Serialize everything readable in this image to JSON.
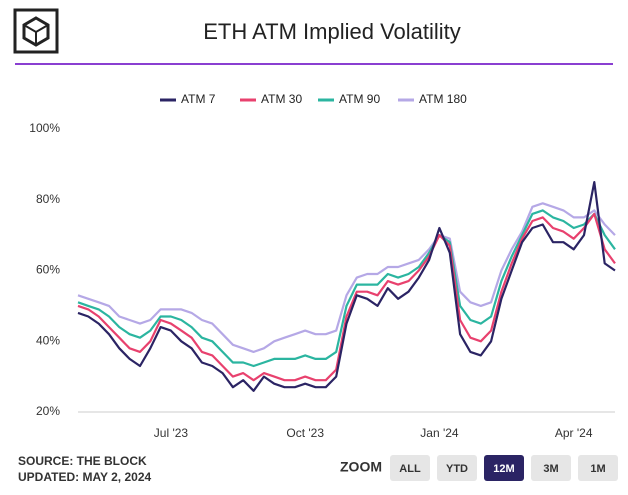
{
  "chart_data": {
    "type": "line",
    "title": "ETH ATM Implied Volatility",
    "categories": [
      null,
      null,
      null,
      null,
      null,
      null,
      null,
      null,
      null,
      "Jul '23",
      null,
      null,
      null,
      null,
      null,
      null,
      null,
      null,
      null,
      null,
      null,
      null,
      "Oct '23",
      null,
      null,
      null,
      null,
      null,
      null,
      null,
      null,
      null,
      null,
      null,
      null,
      "Jan '24",
      null,
      null,
      null,
      null,
      null,
      null,
      null,
      null,
      null,
      null,
      null,
      null,
      "Apr '24",
      null,
      null,
      null,
      null
    ],
    "series": [
      {
        "name": "ATM 7",
        "color": "#2b2464",
        "values": [
          48,
          47,
          45,
          42,
          38,
          35,
          33,
          38,
          44,
          43,
          40,
          38,
          34,
          33,
          31,
          27,
          29,
          26,
          30,
          28,
          27,
          27,
          28,
          27,
          27,
          30,
          45,
          53,
          52,
          50,
          55,
          52,
          54,
          58,
          63,
          72,
          65,
          42,
          37,
          36,
          40,
          52,
          60,
          68,
          72,
          73,
          68,
          68,
          66,
          70,
          85,
          62,
          60
        ]
      },
      {
        "name": "ATM 30",
        "color": "#e8416e",
        "values": [
          50,
          49,
          47,
          44,
          41,
          38,
          37,
          40,
          46,
          45,
          43,
          41,
          37,
          36,
          33,
          30,
          31,
          29,
          31,
          30,
          29,
          29,
          30,
          29,
          29,
          32,
          47,
          54,
          54,
          53,
          57,
          56,
          57,
          60,
          64,
          70,
          67,
          46,
          41,
          40,
          43,
          54,
          62,
          69,
          74,
          75,
          72,
          71,
          69,
          72,
          76,
          66,
          62
        ]
      },
      {
        "name": "ATM 90",
        "color": "#2bb5a0",
        "values": [
          51,
          50,
          49,
          47,
          44,
          42,
          41,
          43,
          47,
          47,
          46,
          44,
          41,
          40,
          37,
          34,
          34,
          33,
          34,
          35,
          35,
          35,
          36,
          35,
          35,
          37,
          50,
          56,
          56,
          56,
          59,
          58,
          59,
          61,
          65,
          70,
          68,
          50,
          46,
          45,
          47,
          57,
          64,
          70,
          76,
          77,
          75,
          74,
          72,
          73,
          76,
          70,
          66
        ]
      },
      {
        "name": "ATM 180",
        "color": "#b5a8e6",
        "values": [
          53,
          52,
          51,
          50,
          47,
          46,
          45,
          46,
          49,
          49,
          49,
          48,
          46,
          45,
          42,
          39,
          38,
          37,
          38,
          40,
          41,
          42,
          43,
          42,
          42,
          43,
          53,
          58,
          59,
          59,
          61,
          61,
          62,
          63,
          66,
          70,
          69,
          54,
          51,
          50,
          51,
          60,
          66,
          71,
          78,
          79,
          78,
          77,
          75,
          75,
          77,
          73,
          70
        ]
      }
    ],
    "ylim": [
      20,
      100
    ],
    "yticks": [
      {
        "value": 20,
        "label": "20%"
      },
      {
        "value": 40,
        "label": "40%"
      },
      {
        "value": 60,
        "label": "60%"
      },
      {
        "value": 80,
        "label": "80%"
      },
      {
        "value": 100,
        "label": "100%"
      }
    ],
    "grid": false,
    "legend": "top"
  },
  "footer": {
    "source": "SOURCE: THE BLOCK",
    "updated": "UPDATED: MAY 2, 2024"
  },
  "zoom": {
    "label": "ZOOM",
    "buttons": [
      "ALL",
      "YTD",
      "12M",
      "3M",
      "1M"
    ],
    "active": "12M"
  }
}
